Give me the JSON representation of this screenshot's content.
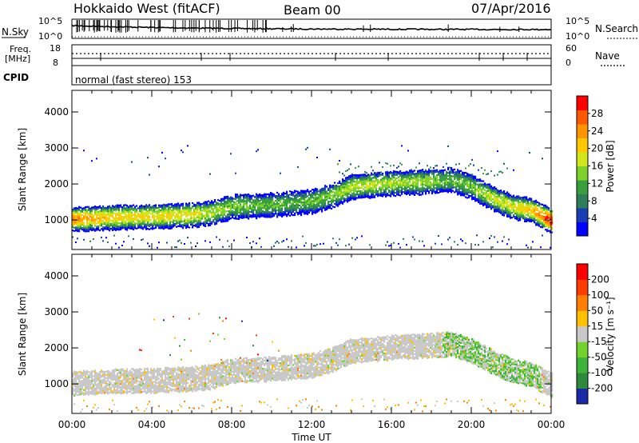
{
  "header": {
    "station": "Hokkaido West (fitACF)",
    "beam": "Beam 00",
    "date": "07/Apr/2016"
  },
  "strip": {
    "nsky_label": "N.Sky",
    "nsearch_label": "N.Search",
    "noise_ticks_left": [
      "10^5",
      "10^0"
    ],
    "noise_ticks_right": [
      "10^5",
      "10^0"
    ],
    "freq_label": "Freq.",
    "freq_unit": "[MHz]",
    "freq_ticks": [
      "18",
      "8"
    ],
    "nave_label": "Nave",
    "nave_ticks": [
      "60",
      "0"
    ],
    "cpid_label": "CPID",
    "cpid_text": "normal (fast stereo) 153"
  },
  "time_axis": {
    "label": "Time UT",
    "ticks": [
      "00:00",
      "04:00",
      "08:00",
      "12:00",
      "16:00",
      "20:00",
      "00:00"
    ]
  },
  "chart_data": [
    {
      "type": "heatmap",
      "panel": "power",
      "ylabel": "Slant Range [km]",
      "ylim": [
        180,
        4600
      ],
      "xlim_hours": [
        0,
        24
      ],
      "yticks": [
        "1000",
        "2000",
        "3000",
        "4000"
      ],
      "colorbar": {
        "label": "Power [dB]",
        "ticks": [
          "4",
          "8",
          "12",
          "16",
          "20",
          "24",
          "28"
        ],
        "colors": [
          "#0000ff",
          "#1a3cb4",
          "#2e7d5a",
          "#37a03c",
          "#7fd22c",
          "#d2e61e",
          "#ffc800",
          "#ff9600",
          "#ff5a00",
          "#ff0000"
        ]
      },
      "band_profile": {
        "hours": [
          0,
          2,
          4,
          6,
          7,
          8,
          10,
          11,
          12,
          13,
          14,
          16,
          18,
          19,
          20,
          21,
          22,
          23,
          24
        ],
        "center_km": [
          1000,
          1050,
          1080,
          1120,
          1180,
          1350,
          1400,
          1450,
          1500,
          1650,
          1900,
          2000,
          2050,
          2100,
          1900,
          1600,
          1350,
          1250,
          950
        ],
        "peak_db": [
          25,
          21,
          20,
          20,
          17,
          15,
          14,
          13,
          14,
          15,
          18,
          17,
          16,
          14,
          15,
          18,
          19,
          22,
          30
        ]
      }
    },
    {
      "type": "heatmap",
      "panel": "velocity",
      "ylabel": "Slant Range [km]",
      "ylim": [
        180,
        4600
      ],
      "xlim_hours": [
        0,
        24
      ],
      "yticks": [
        "1000",
        "2000",
        "3000",
        "4000"
      ],
      "colorbar": {
        "label": "Velocity [m s⁻¹]",
        "ticks": [
          "200",
          "100",
          "50",
          "15",
          "-15",
          "-50",
          "-100",
          "-200"
        ],
        "colors": [
          "#1a2aa8",
          "#2e8a3c",
          "#3cb43c",
          "#74d22c",
          "#c8c8c8",
          "#ffc000",
          "#ff8000",
          "#ff3c00",
          "#ff0000"
        ]
      },
      "dominant_value": "ground scatter (gray)"
    }
  ]
}
